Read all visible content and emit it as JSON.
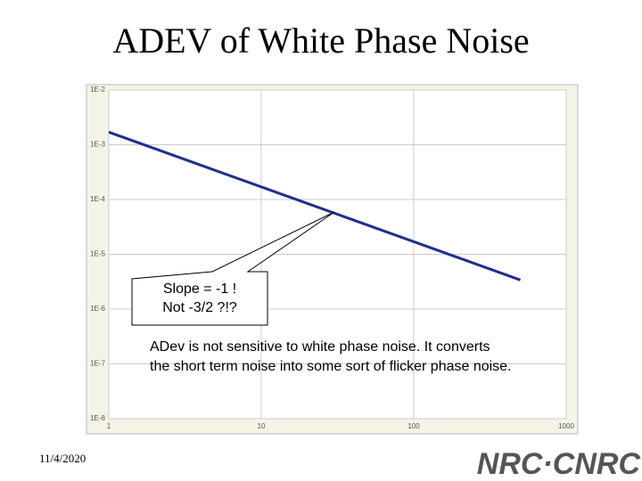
{
  "chart_data": {
    "type": "line",
    "title": "ADEV of White Phase Noise",
    "x": [
      1,
      2,
      5,
      10,
      20,
      50,
      100,
      200,
      500
    ],
    "series": [
      {
        "name": "ADEV",
        "color": "#1f2f8f",
        "values": [
          0.0017,
          0.00085,
          0.00034,
          0.00017,
          8.5e-05,
          3.4e-05,
          1.7e-05,
          8.5e-06,
          3.4e-06
        ]
      }
    ],
    "xlim": [
      1,
      1000
    ],
    "xticks": [
      1,
      10,
      100,
      1000
    ],
    "ylim": [
      1e-08,
      0.01
    ],
    "yticks": [
      {
        "value": 1e-08,
        "label": "1E-8"
      },
      {
        "value": 1e-07,
        "label": "1E-7"
      },
      {
        "value": 1e-06,
        "label": "1E-6"
      },
      {
        "value": 1e-05,
        "label": "1E-5"
      },
      {
        "value": 0.0001,
        "label": "1E-4"
      },
      {
        "value": 0.001,
        "label": "1E-3"
      },
      {
        "value": 0.01,
        "label": "1E-2"
      }
    ],
    "log_scale": true,
    "grid": true,
    "annotations": [
      "Slope = -1 !",
      "Not -3/2 ?!?",
      "ADev is not sensitive to white phase noise. It converts",
      "the short term noise into some sort of flicker phase noise."
    ]
  },
  "footer": {
    "date": "11/4/2020",
    "logo": "NRC·CNRC"
  }
}
